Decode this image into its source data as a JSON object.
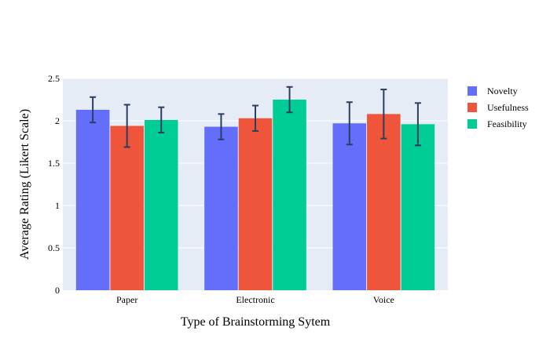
{
  "chart_data": {
    "type": "bar",
    "title": "",
    "xlabel": "Type of Brainstorming Sytem",
    "ylabel": "Average Rating (Likert Scale)",
    "categories": [
      "Paper",
      "Electronic",
      "Voice"
    ],
    "ylim": [
      0,
      2.5
    ],
    "yticks": [
      "0",
      "0.5",
      "1",
      "1.5",
      "2",
      "2.5"
    ],
    "grid": true,
    "legend_position": "right",
    "series": [
      {
        "name": "Novelty",
        "color": "#636efa",
        "values": [
          2.13,
          1.93,
          1.97
        ],
        "errors": [
          0.15,
          0.15,
          0.25
        ]
      },
      {
        "name": "Usefulness",
        "color": "#ef553b",
        "values": [
          1.94,
          2.03,
          2.08
        ],
        "errors": [
          0.25,
          0.15,
          0.29
        ]
      },
      {
        "name": "Feasibility",
        "color": "#00cc96",
        "values": [
          2.01,
          2.25,
          1.96
        ],
        "errors": [
          0.15,
          0.15,
          0.25
        ]
      }
    ],
    "error_bar_color": "#2a3f5f",
    "plot_bg": "#e5ecf6"
  }
}
